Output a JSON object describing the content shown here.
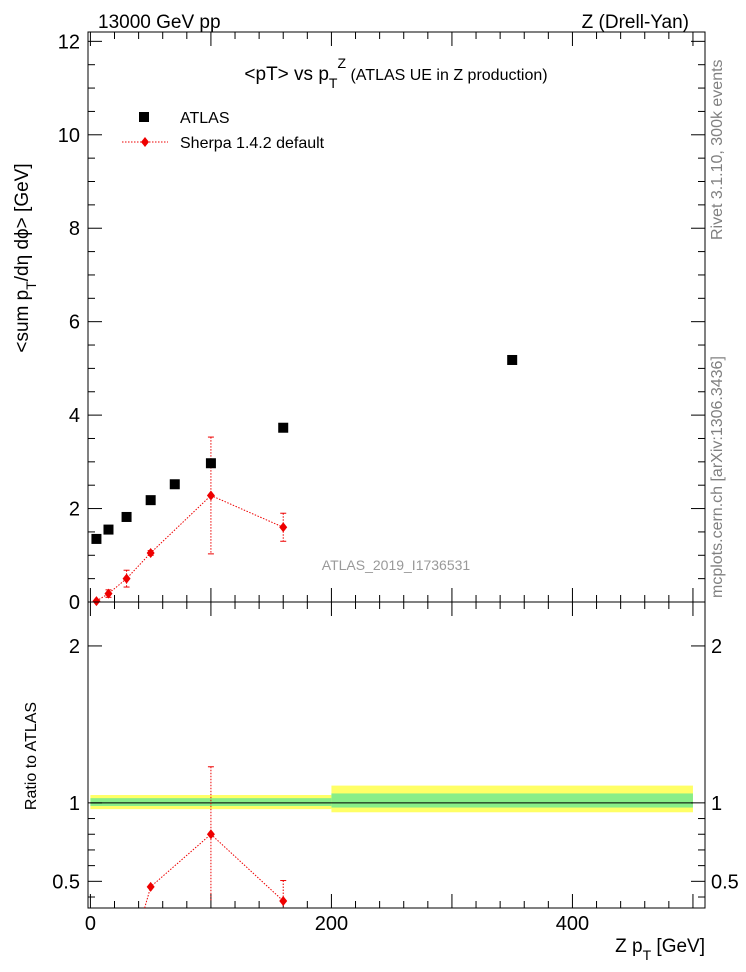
{
  "header": {
    "left": "13000 GeV pp",
    "right": "Z (Drell-Yan)"
  },
  "side_labels": {
    "rivet": "Rivet 3.1.10,  300k events",
    "mcplots": "mcplots.cern.ch [arXiv:1306.3436]"
  },
  "chart_data": [
    {
      "type": "scatter",
      "title_parts": {
        "pre": "<pT> vs p",
        "sub": "T",
        "sup": "Z",
        "post": " (ATLAS UE in Z production)"
      },
      "ylabel_parts": {
        "a": "<sum p",
        "a_sub": "T",
        "b": "/dη dϕ> [GeV]"
      },
      "analysis_label": "ATLAS_2019_I1736531",
      "xlim": [
        -2,
        510
      ],
      "ylim": [
        0,
        12.2
      ],
      "yticks": [
        0,
        2,
        4,
        6,
        8,
        10,
        12
      ],
      "legend": {
        "position": "top-left",
        "entries": [
          "ATLAS",
          "Sherpa 1.4.2 default"
        ]
      },
      "series": [
        {
          "name": "ATLAS",
          "marker": "square",
          "color": "#000000",
          "x": [
            5,
            15,
            30,
            50,
            70,
            100,
            160,
            350
          ],
          "y": [
            1.35,
            1.55,
            1.82,
            2.18,
            2.52,
            2.97,
            3.73,
            5.18
          ]
        },
        {
          "name": "Sherpa 1.4.2 default",
          "marker": "diamond",
          "color": "#ee0000",
          "x": [
            5,
            15,
            30,
            50,
            100,
            160
          ],
          "y": [
            0.02,
            0.18,
            0.5,
            1.05,
            2.28,
            1.6
          ],
          "yerr": [
            0.0,
            0.08,
            0.18,
            0.05,
            1.25,
            0.3
          ]
        }
      ]
    },
    {
      "type": "scatter",
      "ylabel": "Ratio to ATLAS",
      "xlabel_parts": {
        "a": "Z p",
        "a_sub": "T",
        "b": " [GeV]"
      },
      "xlim": [
        -2,
        510
      ],
      "ylim": [
        0.33,
        2.28
      ],
      "yticks": [
        0.5,
        1,
        2
      ],
      "xticks": [
        0,
        200,
        400
      ],
      "bands": [
        {
          "x0": 0,
          "x1": 200,
          "inner": [
            0.98,
            1.03
          ],
          "outer": [
            0.96,
            1.05
          ]
        },
        {
          "x0": 200,
          "x1": 500,
          "inner": [
            0.97,
            1.06
          ],
          "outer": [
            0.94,
            1.11
          ]
        }
      ],
      "series": [
        {
          "name": "Sherpa 1.4.2 default",
          "marker": "diamond",
          "color": "#ee0000",
          "x": [
            45,
            50,
            100,
            160
          ],
          "y": [
            0.33,
            0.465,
            0.8,
            0.375
          ],
          "yerr": [
            0.0,
            0.0,
            0.43,
            0.13
          ]
        }
      ]
    }
  ]
}
